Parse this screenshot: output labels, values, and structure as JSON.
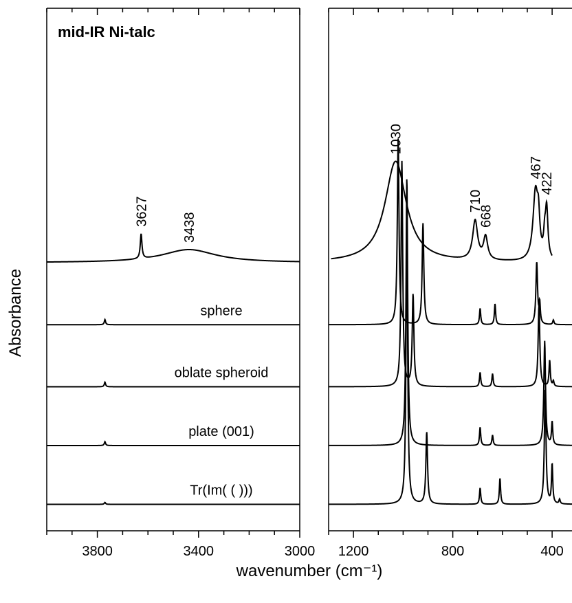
{
  "chart_data": {
    "type": "line",
    "title": "mid-IR Ni-talc",
    "xlabel": "wavenumber (cm⁻¹)",
    "ylabel": "Absorbance",
    "grid": false,
    "x_reversed": true,
    "panels": [
      {
        "xlim": [
          4000,
          3000
        ],
        "tick_labels": [
          "3800",
          "3400",
          "3000"
        ],
        "tick_values": [
          3800,
          3400,
          3000
        ]
      },
      {
        "xlim": [
          1300,
          320
        ],
        "tick_labels": [
          "1200",
          "800",
          "400"
        ],
        "tick_values": [
          1200,
          800,
          400
        ]
      }
    ],
    "series": [
      {
        "name": "",
        "role": "measured",
        "baseline": 0.0,
        "peaks_left": [
          {
            "x": 3627,
            "y": 0.38,
            "w": 4
          },
          {
            "x": 3438,
            "y": 0.2,
            "w": 130
          }
        ],
        "peaks_right": [
          {
            "x": 1030,
            "y": 1.55,
            "w": 52
          },
          {
            "x": 710,
            "y": 0.6,
            "w": 12
          },
          {
            "x": 668,
            "y": 0.35,
            "w": 10
          },
          {
            "x": 467,
            "y": 1.05,
            "w": 12
          },
          {
            "x": 455,
            "y": 0.45,
            "w": 6
          },
          {
            "x": 430,
            "y": 0.3,
            "w": 5
          },
          {
            "x": 422,
            "y": 0.75,
            "w": 6
          }
        ],
        "peak_labels": [
          {
            "x": 3627,
            "text": "3627"
          },
          {
            "x": 3438,
            "text": "3438"
          },
          {
            "x": 1030,
            "text": "1030"
          },
          {
            "x": 710,
            "text": "710"
          },
          {
            "x": 668,
            "text": "668"
          },
          {
            "x": 467,
            "text": "467"
          },
          {
            "x": 422,
            "text": "422"
          }
        ]
      },
      {
        "name": "sphere",
        "baseline": -0.95,
        "peaks_left": [
          {
            "x": 3770,
            "y": 0.08,
            "w": 3
          }
        ],
        "peaks_right": [
          {
            "x": 1020,
            "y": 2.85,
            "w": 4
          },
          {
            "x": 920,
            "y": 1.55,
            "w": 4
          },
          {
            "x": 690,
            "y": 0.25,
            "w": 3
          },
          {
            "x": 630,
            "y": 0.32,
            "w": 3
          },
          {
            "x": 462,
            "y": 0.95,
            "w": 4
          },
          {
            "x": 450,
            "y": 0.3,
            "w": 3
          },
          {
            "x": 395,
            "y": 0.07,
            "w": 3
          }
        ]
      },
      {
        "name": "oblate spheroid",
        "baseline": -1.9,
        "peaks_left": [
          {
            "x": 3770,
            "y": 0.07,
            "w": 3
          }
        ],
        "peaks_right": [
          {
            "x": 1005,
            "y": 3.45,
            "w": 4
          },
          {
            "x": 960,
            "y": 1.4,
            "w": 4
          },
          {
            "x": 690,
            "y": 0.22,
            "w": 3
          },
          {
            "x": 640,
            "y": 0.2,
            "w": 3
          },
          {
            "x": 453,
            "y": 1.25,
            "w": 4
          },
          {
            "x": 410,
            "y": 0.4,
            "w": 3
          },
          {
            "x": 395,
            "y": 0.08,
            "w": 3
          }
        ]
      },
      {
        "name": "plate (001)",
        "baseline": -2.8,
        "peaks_left": [
          {
            "x": 3770,
            "y": 0.06,
            "w": 3
          }
        ],
        "peaks_right": [
          {
            "x": 985,
            "y": 4.1,
            "w": 4
          },
          {
            "x": 690,
            "y": 0.28,
            "w": 3
          },
          {
            "x": 640,
            "y": 0.16,
            "w": 3
          },
          {
            "x": 430,
            "y": 1.6,
            "w": 4
          },
          {
            "x": 400,
            "y": 0.35,
            "w": 3
          }
        ]
      },
      {
        "name": "Tr(Im(  ( )))",
        "baseline": -3.7,
        "peaks_left": [
          {
            "x": 3770,
            "y": 0.03,
            "w": 3
          }
        ],
        "peaks_right": [
          {
            "x": 985,
            "y": 4.25,
            "w": 4
          },
          {
            "x": 905,
            "y": 1.1,
            "w": 4
          },
          {
            "x": 690,
            "y": 0.25,
            "w": 3
          },
          {
            "x": 610,
            "y": 0.4,
            "w": 3
          },
          {
            "x": 428,
            "y": 1.75,
            "w": 4
          },
          {
            "x": 400,
            "y": 0.6,
            "w": 3
          },
          {
            "x": 370,
            "y": 0.07,
            "w": 3
          }
        ]
      }
    ]
  }
}
